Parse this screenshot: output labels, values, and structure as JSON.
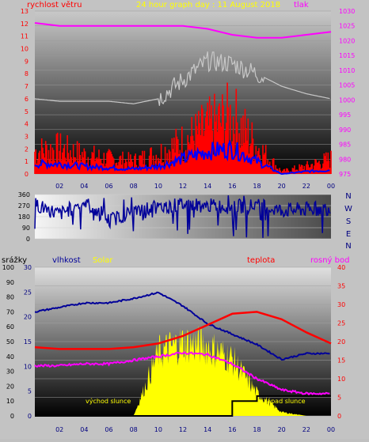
{
  "panels": {
    "top": {
      "title": "24 hour graph day : 11 August 2018",
      "left_label": "rychlost větru",
      "right_label": "tlak",
      "left_ticks": [
        "0",
        "1",
        "2",
        "3",
        "4",
        "5",
        "6",
        "7",
        "8",
        "9",
        "10",
        "11",
        "12",
        "13"
      ],
      "right_ticks": [
        "975",
        "980",
        "985",
        "990",
        "995",
        "1000",
        "1005",
        "1010",
        "1015",
        "1020",
        "1025",
        "1030"
      ]
    },
    "mid": {
      "left_ticks": [
        "0",
        "90",
        "180",
        "270",
        "360"
      ],
      "right_labels": [
        "N",
        "W",
        "S",
        "E",
        "N"
      ]
    },
    "bottom": {
      "labels": {
        "rain": "srážky",
        "humidity": "vlhkost",
        "solar": "Solar",
        "temperature": "teplota",
        "dewpoint": "rosný bod"
      },
      "rain_ticks": [
        "0",
        "10",
        "20",
        "30",
        "40",
        "50",
        "60",
        "70",
        "80",
        "90",
        "100"
      ],
      "humidity_ticks": [
        "0",
        "5",
        "10",
        "15",
        "20",
        "25",
        "30"
      ],
      "temp_ticks": [
        "0",
        "5",
        "10",
        "15",
        "20",
        "25",
        "30",
        "35",
        "40"
      ],
      "sunrise": "východ slunce",
      "sunset": "západ slunce"
    },
    "x_ticks": [
      "02",
      "04",
      "06",
      "08",
      "10",
      "12",
      "14",
      "16",
      "18",
      "20",
      "22",
      "00"
    ]
  },
  "colors": {
    "wind": "#ff0000",
    "gust": "#0000ff",
    "pressure": "#ff00ff",
    "avg": "#c8c8c8",
    "direction": "#000099",
    "humidity": "#000099",
    "temperature": "#ff0000",
    "dewpoint": "#ff00ff",
    "solar": "#ffff00",
    "rain": "#000000"
  },
  "chart_data": [
    {
      "type": "line",
      "title": "24 hour graph day : 11 August 2018",
      "ylabel": "rychlost větru",
      "y2label": "tlak",
      "ylim": [
        0,
        13
      ],
      "y2lim": [
        975,
        1030
      ],
      "x_hours": [
        0,
        2,
        4,
        6,
        8,
        10,
        12,
        14,
        16,
        18,
        20,
        22,
        24
      ],
      "series": [
        {
          "name": "tlak",
          "axis": "right",
          "values": [
            1026,
            1025,
            1025,
            1025,
            1025,
            1025,
            1025,
            1024,
            1022,
            1021,
            1021,
            1022,
            1023
          ]
        }
      ],
      "series_unnamed": [
        {
          "axis": "left",
          "style": "red-bars",
          "values": [
            1.8,
            2.0,
            1.5,
            1.2,
            1.0,
            1.6,
            2.5,
            3.6,
            4.5,
            2.2,
            0.2,
            0.6,
            1.2
          ]
        },
        {
          "axis": "left",
          "style": "blue-line",
          "values": [
            0.8,
            0.8,
            0.6,
            0.5,
            0.4,
            0.6,
            1.2,
            1.8,
            2.0,
            1.0,
            0.0,
            0.2,
            0.3
          ]
        },
        {
          "axis": "left",
          "style": "gray-line",
          "values": [
            6.0,
            5.8,
            5.8,
            5.8,
            5.6,
            6.0,
            7.5,
            9.0,
            8.8,
            8.0,
            7.0,
            6.4,
            6.0
          ]
        }
      ]
    },
    {
      "type": "line",
      "ylim": [
        0,
        360
      ],
      "x_hours": [
        0,
        2,
        4,
        6,
        8,
        10,
        12,
        14,
        16,
        18,
        20,
        22,
        24
      ],
      "series_unnamed": [
        {
          "style": "wind-direction",
          "values": [
            280,
            200,
            300,
            150,
            220,
            250,
            280,
            270,
            260,
            270,
            230,
            240,
            250
          ]
        }
      ]
    },
    {
      "type": "area",
      "x_hours": [
        0,
        2,
        4,
        6,
        8,
        10,
        12,
        14,
        16,
        18,
        20,
        22,
        24
      ],
      "series": [
        {
          "name": "vlhkost",
          "axis": "left2",
          "ylim": [
            0,
            100
          ],
          "values": [
            70,
            73,
            76,
            76,
            79,
            83,
            74,
            62,
            55,
            48,
            38,
            42,
            42
          ]
        },
        {
          "name": "teplota",
          "axis": "right",
          "ylim": [
            0,
            40
          ],
          "values": [
            18.5,
            18.0,
            18.0,
            18.0,
            18.5,
            19.5,
            21.5,
            24.5,
            27.5,
            28.0,
            26.0,
            22.5,
            19.5
          ]
        },
        {
          "name": "rosný bod",
          "axis": "right",
          "ylim": [
            0,
            40
          ],
          "values": [
            13.5,
            13.5,
            14.0,
            14.0,
            15.0,
            16.0,
            17.0,
            16.5,
            14.0,
            10.0,
            7.0,
            6.0,
            6.0
          ]
        },
        {
          "name": "Solar",
          "axis": "left2",
          "ylim": [
            0,
            100
          ],
          "values": [
            0,
            0,
            0,
            0,
            0,
            50,
            58,
            55,
            45,
            18,
            3,
            0,
            0
          ]
        }
      ],
      "series_unnamed": [
        {
          "style": "rain-step",
          "axis": "left",
          "ylim": [
            0,
            30
          ],
          "values": [
            0,
            0,
            0,
            0,
            0,
            0,
            0,
            0,
            3,
            4,
            4,
            4,
            4
          ]
        }
      ]
    }
  ]
}
